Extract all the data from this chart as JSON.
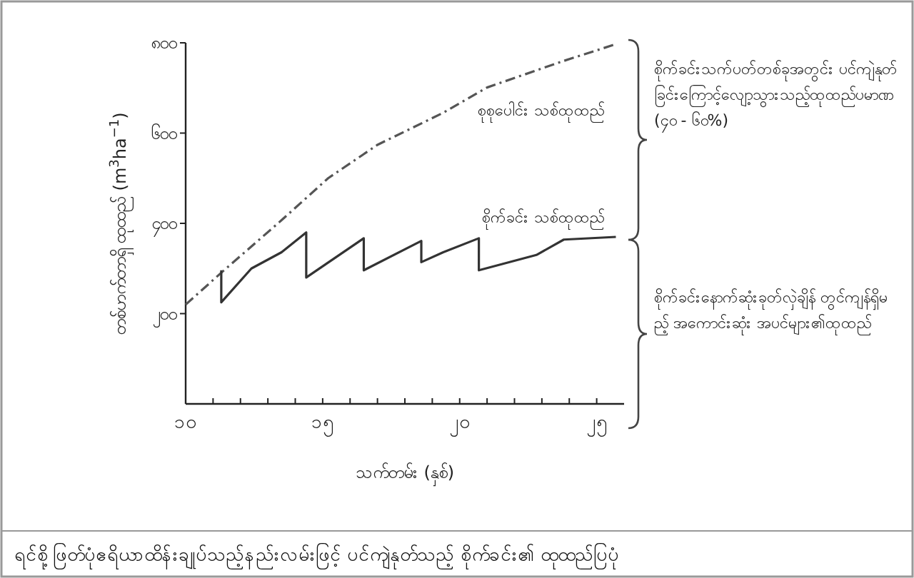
{
  "chart_data": {
    "type": "line",
    "title": "ရင်စို့ဖြတ်ပုံဧရိယာထိန်းချုပ်သည့်နည်းလမ်းဖြင့် ပင်ကျဲနုတ်သည့် စိုက်ခင်း၏ ထုထည်ပြပုံ",
    "xlabel": "သက်တမ်း (နှစ်)",
    "ylabel": "တစ်ဟက်တာရှိ ထုထည် (m$^{3}$ha$^{−1}$)",
    "xlim": [
      10,
      26
    ],
    "ylim": [
      0,
      800
    ],
    "xticks": [
      {
        "value": 10,
        "label": "၁၀"
      },
      {
        "value": 11,
        "label": null
      },
      {
        "value": 12,
        "label": null
      },
      {
        "value": 13,
        "label": null
      },
      {
        "value": 14,
        "label": null
      },
      {
        "value": 15,
        "label": "၁၅"
      },
      {
        "value": 16,
        "label": null
      },
      {
        "value": 17,
        "label": null
      },
      {
        "value": 18,
        "label": null
      },
      {
        "value": 19,
        "label": null
      },
      {
        "value": 20,
        "label": "၂၀"
      },
      {
        "value": 21,
        "label": null
      },
      {
        "value": 22,
        "label": null
      },
      {
        "value": 23,
        "label": null
      },
      {
        "value": 24,
        "label": null
      },
      {
        "value": 25,
        "label": "၂၅"
      }
    ],
    "yticks": [
      {
        "value": 200,
        "label": "၂၀၀"
      },
      {
        "value": 400,
        "label": "၄၀၀"
      },
      {
        "value": 600,
        "label": "၆၀၀"
      },
      {
        "value": 800,
        "label": "၈၀၀"
      }
    ],
    "grid": false,
    "series": [
      {
        "name": "စုစုပေါင်း သစ်ထုထည်",
        "color": "#555555",
        "line_style": "dashed",
        "x": [
          10,
          11.4,
          13.5,
          15.2,
          17.0,
          19.4,
          21.0,
          23.8,
          25.7
        ],
        "values": [
          220,
          296,
          407,
          500,
          574,
          645,
          701,
          760,
          797
        ]
      },
      {
        "name": "စိုက်ခင်း သစ်ထုထည်",
        "color": "#333333",
        "line_style": "solid",
        "x": [
          11.3,
          11.3,
          12.4,
          13.5,
          14.4,
          14.4,
          16.5,
          16.5,
          18.6,
          18.6,
          19.4,
          20.7,
          20.7,
          22.8,
          23.8,
          25.7
        ],
        "values": [
          296,
          225,
          300,
          336,
          380,
          280,
          367,
          296,
          361,
          314,
          336,
          367,
          296,
          330,
          364,
          370
        ]
      }
    ],
    "annotations": [
      "စိုက်ခင်းသက်ပတ်တစ်ခုအတွင်း ပင်ကျဲနုတ်ခြင်းကြောင့်လျော့သွားသည့်ထုထည်ပမာဏ (၄၀ - ၆၀%)",
      "စိုက်ခင်းနောက်ဆုံးခုတ်လှဲချိန် တွင်ကျန်ရှိမည့် အကောင်းဆုံး အပင်များ၏ထုထည်"
    ]
  }
}
